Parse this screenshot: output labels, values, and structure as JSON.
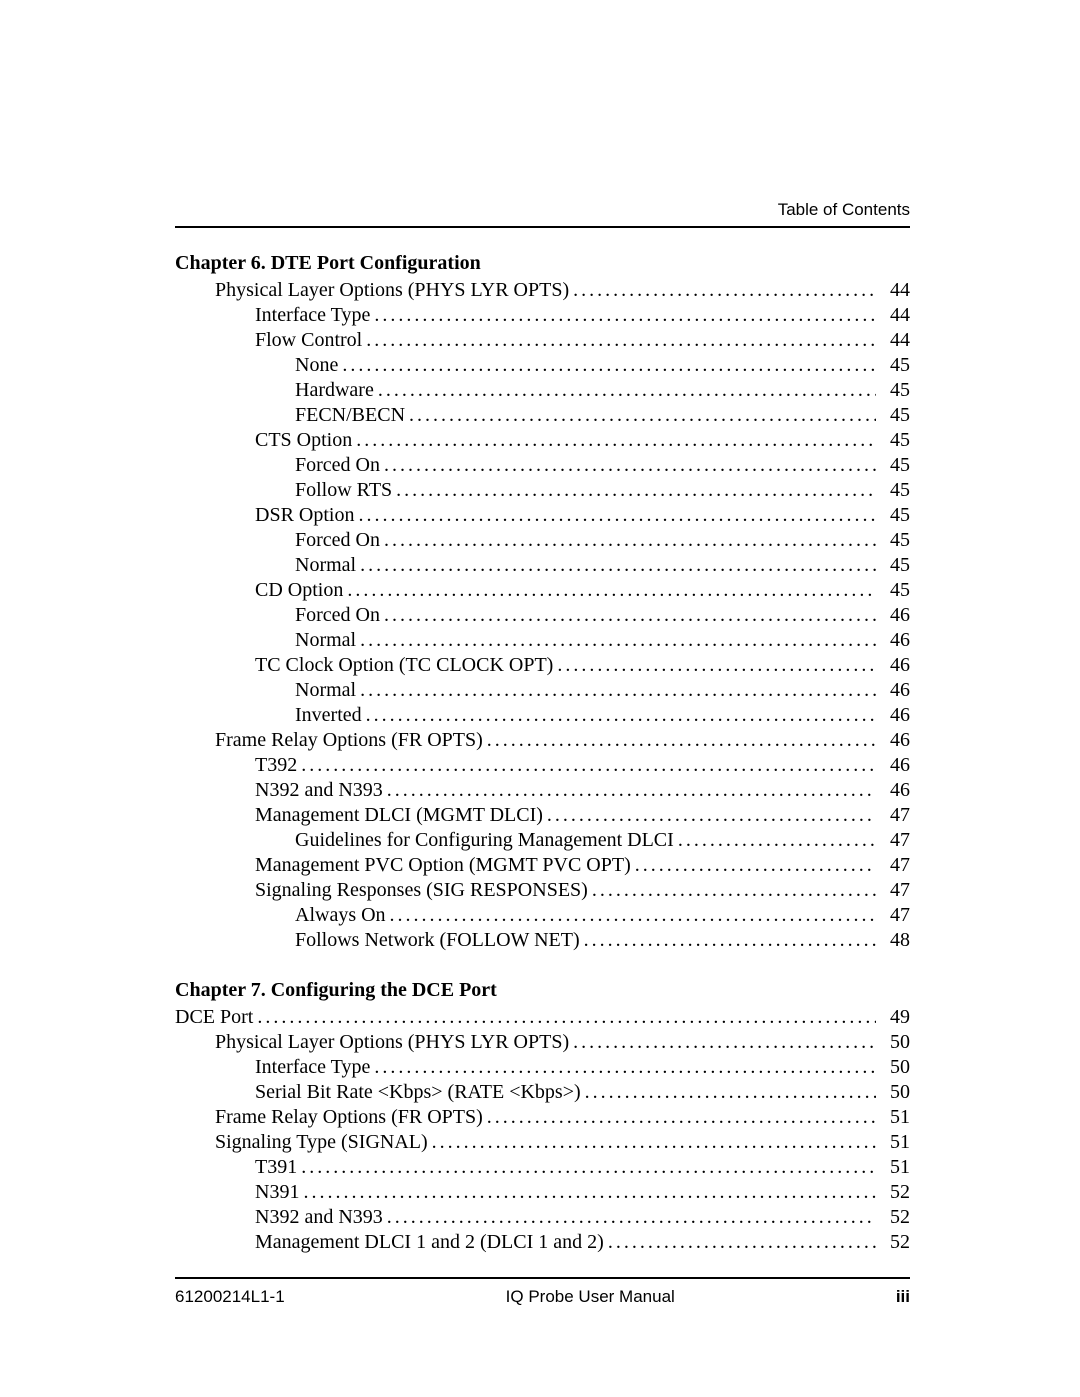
{
  "running_head": "Table of Contents",
  "footer": {
    "left": "61200214L1-1",
    "center": "IQ Probe User Manual",
    "right": "iii"
  },
  "chapters": [
    {
      "title": "Chapter 6.  DTE Port Configuration",
      "entries": [
        {
          "label": "Physical Layer Options (PHYS LYR OPTS)",
          "page": "44",
          "indent": 1
        },
        {
          "label": "Interface Type",
          "page": "44",
          "indent": 2
        },
        {
          "label": "Flow Control",
          "page": "44",
          "indent": 2
        },
        {
          "label": "None",
          "page": "45",
          "indent": 3
        },
        {
          "label": "Hardware",
          "page": "45",
          "indent": 3
        },
        {
          "label": "FECN/BECN",
          "page": "45",
          "indent": 3
        },
        {
          "label": "CTS Option",
          "page": "45",
          "indent": 2
        },
        {
          "label": "Forced On",
          "page": "45",
          "indent": 3
        },
        {
          "label": "Follow RTS",
          "page": "45",
          "indent": 3
        },
        {
          "label": "DSR Option",
          "page": "45",
          "indent": 2
        },
        {
          "label": "Forced On",
          "page": "45",
          "indent": 3
        },
        {
          "label": "Normal",
          "page": "45",
          "indent": 3
        },
        {
          "label": "CD Option",
          "page": "45",
          "indent": 2
        },
        {
          "label": "Forced On",
          "page": "46",
          "indent": 3
        },
        {
          "label": "Normal",
          "page": "46",
          "indent": 3
        },
        {
          "label": "TC Clock Option (TC CLOCK OPT)",
          "page": "46",
          "indent": 2
        },
        {
          "label": "Normal",
          "page": "46",
          "indent": 3
        },
        {
          "label": "Inverted",
          "page": "46",
          "indent": 3
        },
        {
          "label": "Frame Relay Options (FR OPTS)",
          "page": "46",
          "indent": 1
        },
        {
          "label": "T392",
          "page": "46",
          "indent": 2
        },
        {
          "label": "N392 and N393",
          "page": "46",
          "indent": 2
        },
        {
          "label": "Management DLCI (MGMT DLCI)",
          "page": "47",
          "indent": 2
        },
        {
          "label": "Guidelines for Configuring Management DLCI",
          "page": "47",
          "indent": 3
        },
        {
          "label": "Management PVC Option (MGMT PVC OPT)",
          "page": "47",
          "indent": 2
        },
        {
          "label": "Signaling Responses (SIG RESPONSES)",
          "page": "47",
          "indent": 2
        },
        {
          "label": "Always On",
          "page": "47",
          "indent": 3
        },
        {
          "label": "Follows Network (FOLLOW NET)",
          "page": "48",
          "indent": 3
        }
      ]
    },
    {
      "title": "Chapter 7.  Configuring the DCE Port",
      "entries": [
        {
          "label": "DCE Port",
          "page": "49",
          "indent": 0
        },
        {
          "label": "Physical Layer Options (PHYS LYR OPTS)",
          "page": "50",
          "indent": 1
        },
        {
          "label": "Interface Type",
          "page": "50",
          "indent": 2
        },
        {
          "label": "Serial Bit Rate <Kbps> (RATE <Kbps>)",
          "page": "50",
          "indent": 2
        },
        {
          "label": "Frame Relay Options (FR OPTS)",
          "page": "51",
          "indent": 1
        },
        {
          "label": "Signaling Type (SIGNAL)",
          "page": "51",
          "indent": 1
        },
        {
          "label": "T391",
          "page": "51",
          "indent": 2
        },
        {
          "label": "N391",
          "page": "52",
          "indent": 2
        },
        {
          "label": "N392 and N393",
          "page": "52",
          "indent": 2
        },
        {
          "label": "Management DLCI 1 and 2 (DLCI 1 and 2)",
          "page": "52",
          "indent": 2
        }
      ]
    }
  ]
}
